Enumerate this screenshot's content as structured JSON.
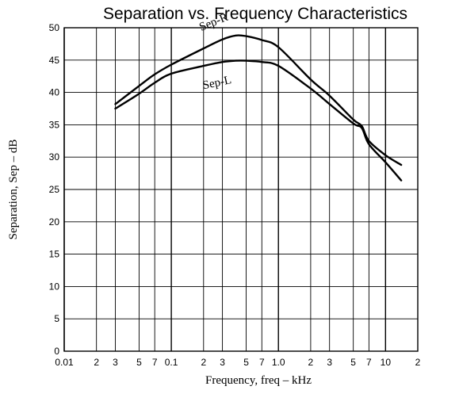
{
  "chart_data": {
    "type": "line",
    "title": "Separation vs. Frequency Characteristics",
    "xlabel": "Frequency, freq  –  kHz",
    "ylabel": "Separation, Sep  –  dB",
    "x_scale": "log",
    "xlim": [
      0.01,
      20
    ],
    "ylim": [
      0,
      50
    ],
    "grid": true,
    "x_tick_labels": [
      {
        "value": 0.01,
        "label": "0.01"
      },
      {
        "value": 0.02,
        "label": "2"
      },
      {
        "value": 0.03,
        "label": "3"
      },
      {
        "value": 0.05,
        "label": "5"
      },
      {
        "value": 0.07,
        "label": "7"
      },
      {
        "value": 0.1,
        "label": "0.1"
      },
      {
        "value": 0.2,
        "label": "2"
      },
      {
        "value": 0.3,
        "label": "3"
      },
      {
        "value": 0.5,
        "label": "5"
      },
      {
        "value": 0.7,
        "label": "7"
      },
      {
        "value": 1.0,
        "label": "1.0"
      },
      {
        "value": 2,
        "label": "2"
      },
      {
        "value": 3,
        "label": "3"
      },
      {
        "value": 5,
        "label": "5"
      },
      {
        "value": 7,
        "label": "7"
      },
      {
        "value": 10,
        "label": "10"
      },
      {
        "value": 20,
        "label": "2"
      }
    ],
    "y_ticks": [
      0,
      5,
      10,
      15,
      20,
      25,
      30,
      35,
      40,
      45,
      50
    ],
    "series": [
      {
        "name": "Sep-R",
        "x": [
          0.03,
          0.05,
          0.07,
          0.1,
          0.2,
          0.3,
          0.4,
          0.5,
          0.7,
          1.0,
          2,
          3,
          5,
          6,
          7,
          10,
          14
        ],
        "y": [
          38.2,
          41,
          42.8,
          44.3,
          46.8,
          48.2,
          48.8,
          48.7,
          48.1,
          47,
          42,
          39.5,
          35.8,
          34.8,
          32.5,
          30.3,
          28.8
        ]
      },
      {
        "name": "Sep-L",
        "x": [
          0.03,
          0.05,
          0.07,
          0.1,
          0.2,
          0.3,
          0.4,
          0.5,
          0.7,
          1.0,
          2,
          3,
          5,
          6,
          7,
          10,
          14
        ],
        "y": [
          37.5,
          39.8,
          41.5,
          42.9,
          44.1,
          44.7,
          44.9,
          44.9,
          44.7,
          44.1,
          40.6,
          38.2,
          35.2,
          34.5,
          32,
          29.2,
          26.4
        ]
      }
    ]
  }
}
